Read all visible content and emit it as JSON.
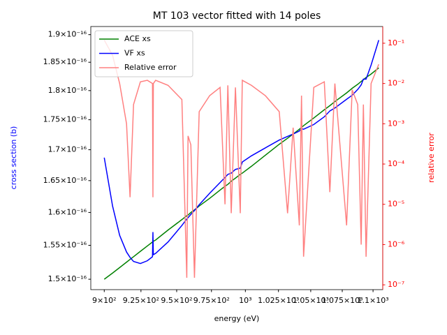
{
  "chart_data": {
    "type": "line",
    "title": "MT 103 vector fitted with 14 poles",
    "xlabel": "energy (eV)",
    "ylabel": "cross section (b)",
    "ylabel_color": "#0000ff",
    "y2label": "relative error",
    "y2label_color": "#ff0000",
    "xscale": "log",
    "yscale": "log",
    "y2scale": "log",
    "xlim": [
      891,
      1108
    ],
    "ylim": [
      1.485e-16,
      1.915e-16
    ],
    "y2lim": [
      7.6e-08,
      0.26
    ],
    "xticks": [
      {
        "value": 900,
        "label": "9×10²"
      },
      {
        "value": 925,
        "label": "9.25×10²"
      },
      {
        "value": 950,
        "label": "9.5×10²"
      },
      {
        "value": 975,
        "label": "9.75×10²"
      },
      {
        "value": 1000,
        "label": "10³"
      },
      {
        "value": 1025,
        "label": "1.025×10³"
      },
      {
        "value": 1050,
        "label": "1.05×10³"
      },
      {
        "value": 1075,
        "label": "1.075×10³"
      },
      {
        "value": 1100,
        "label": "1.1×10³"
      }
    ],
    "yticks": [
      {
        "value": 1.5e-16,
        "label": "1.5×10⁻¹⁶"
      },
      {
        "value": 1.55e-16,
        "label": "1.55×10⁻¹⁶"
      },
      {
        "value": 1.6e-16,
        "label": "1.6×10⁻¹⁶"
      },
      {
        "value": 1.65e-16,
        "label": "1.65×10⁻¹⁶"
      },
      {
        "value": 1.7e-16,
        "label": "1.7×10⁻¹⁶"
      },
      {
        "value": 1.75e-16,
        "label": "1.75×10⁻¹⁶"
      },
      {
        "value": 1.8e-16,
        "label": "1.8×10⁻¹⁶"
      },
      {
        "value": 1.85e-16,
        "label": "1.85×10⁻¹⁶"
      },
      {
        "value": 1.9e-16,
        "label": "1.9×10⁻¹⁶"
      }
    ],
    "y2ticks": [
      {
        "value": 1e-07,
        "label": "10⁻⁷"
      },
      {
        "value": 1e-06,
        "label": "10⁻⁶"
      },
      {
        "value": 1e-05,
        "label": "10⁻⁵"
      },
      {
        "value": 0.0001,
        "label": "10⁻⁴"
      },
      {
        "value": 0.001,
        "label": "10⁻³"
      },
      {
        "value": 0.01,
        "label": "10⁻²"
      },
      {
        "value": 0.1,
        "label": "10⁻¹"
      }
    ],
    "y2tick_color": "#ff0000",
    "legend": "upper left",
    "x": [
      900.0,
      905.6,
      910.4,
      915.1,
      917.5,
      919.9,
      924.6,
      929.4,
      933.0,
      933.3,
      933.6,
      935.2,
      943.9,
      953.7,
      957.2,
      958.1,
      960.1,
      962.7,
      966.1,
      973.7,
      981.3,
      984.9,
      987.0,
      989.5,
      992.6,
      996.2,
      997.7,
      1004.5,
      1015.0,
      1025.6,
      1032.0,
      1036.3,
      1041.1,
      1042.8,
      1044.4,
      1052.4,
      1060.7,
      1065.1,
      1069.1,
      1078.5,
      1083.0,
      1087.5,
      1090.3,
      1092.1,
      1094.3,
      1098.4,
      1104.7
    ],
    "series": [
      {
        "name": "ACE xs",
        "color": "#008000",
        "axis": "y",
        "values": [
          1.5e-16,
          1.509e-16,
          1.517e-16,
          1.525e-16,
          1.529e-16,
          1.533e-16,
          1.541e-16,
          1.549e-16,
          1.555e-16,
          1.555e-16,
          1.556e-16,
          1.558e-16,
          1.573e-16,
          1.589e-16,
          1.595e-16,
          1.596e-16,
          1.6e-16,
          1.604e-16,
          1.61e-16,
          1.622e-16,
          1.635e-16,
          1.641e-16,
          1.644e-16,
          1.649e-16,
          1.654e-16,
          1.66e-16,
          1.662e-16,
          1.673e-16,
          1.691e-16,
          1.709e-16,
          1.719e-16,
          1.726e-16,
          1.734e-16,
          1.737e-16,
          1.74e-16,
          1.753e-16,
          1.767e-16,
          1.774e-16,
          1.781e-16,
          1.796e-16,
          1.804e-16,
          1.811e-16,
          1.816e-16,
          1.819e-16,
          1.823e-16,
          1.829e-16,
          1.84e-16
        ]
      },
      {
        "name": "VF xs",
        "color": "#0000ff",
        "axis": "y",
        "values": [
          1.687e-16,
          1.61e-16,
          1.565e-16,
          1.54e-16,
          1.532e-16,
          1.526e-16,
          1.523e-16,
          1.527e-16,
          1.533e-16,
          1.57e-16,
          1.536e-16,
          1.538e-16,
          1.555e-16,
          1.58e-16,
          1.59e-16,
          1.592e-16,
          1.597e-16,
          1.603e-16,
          1.612e-16,
          1.63e-16,
          1.647e-16,
          1.655e-16,
          1.66e-16,
          1.662e-16,
          1.668e-16,
          1.67e-16,
          1.68e-16,
          1.69e-16,
          1.703e-16,
          1.716e-16,
          1.722e-16,
          1.726e-16,
          1.731e-16,
          1.735e-16,
          1.734e-16,
          1.742e-16,
          1.755e-16,
          1.765e-16,
          1.77e-16,
          1.785e-16,
          1.792e-16,
          1.802e-16,
          1.81e-16,
          1.82e-16,
          1.82e-16,
          1.845e-16,
          1.89e-16
        ]
      },
      {
        "name": "Relative error",
        "color": "#ff8080",
        "axis": "y2",
        "values": [
          0.12,
          0.05,
          0.01,
          0.001,
          1.5e-05,
          0.003,
          0.011,
          0.012,
          0.01,
          1.5e-05,
          0.01,
          0.012,
          0.009,
          0.004,
          1.5e-07,
          0.0005,
          0.0003,
          1.5e-07,
          0.002,
          0.005,
          0.008,
          1e-05,
          0.009,
          6e-06,
          0.008,
          6e-06,
          0.012,
          0.009,
          0.005,
          0.002,
          6e-06,
          0.0008,
          3e-06,
          0.005,
          5e-07,
          0.008,
          0.011,
          2e-05,
          0.01,
          3e-06,
          0.007,
          0.003,
          1e-06,
          0.003,
          5e-07,
          0.01,
          0.03
        ]
      }
    ]
  }
}
